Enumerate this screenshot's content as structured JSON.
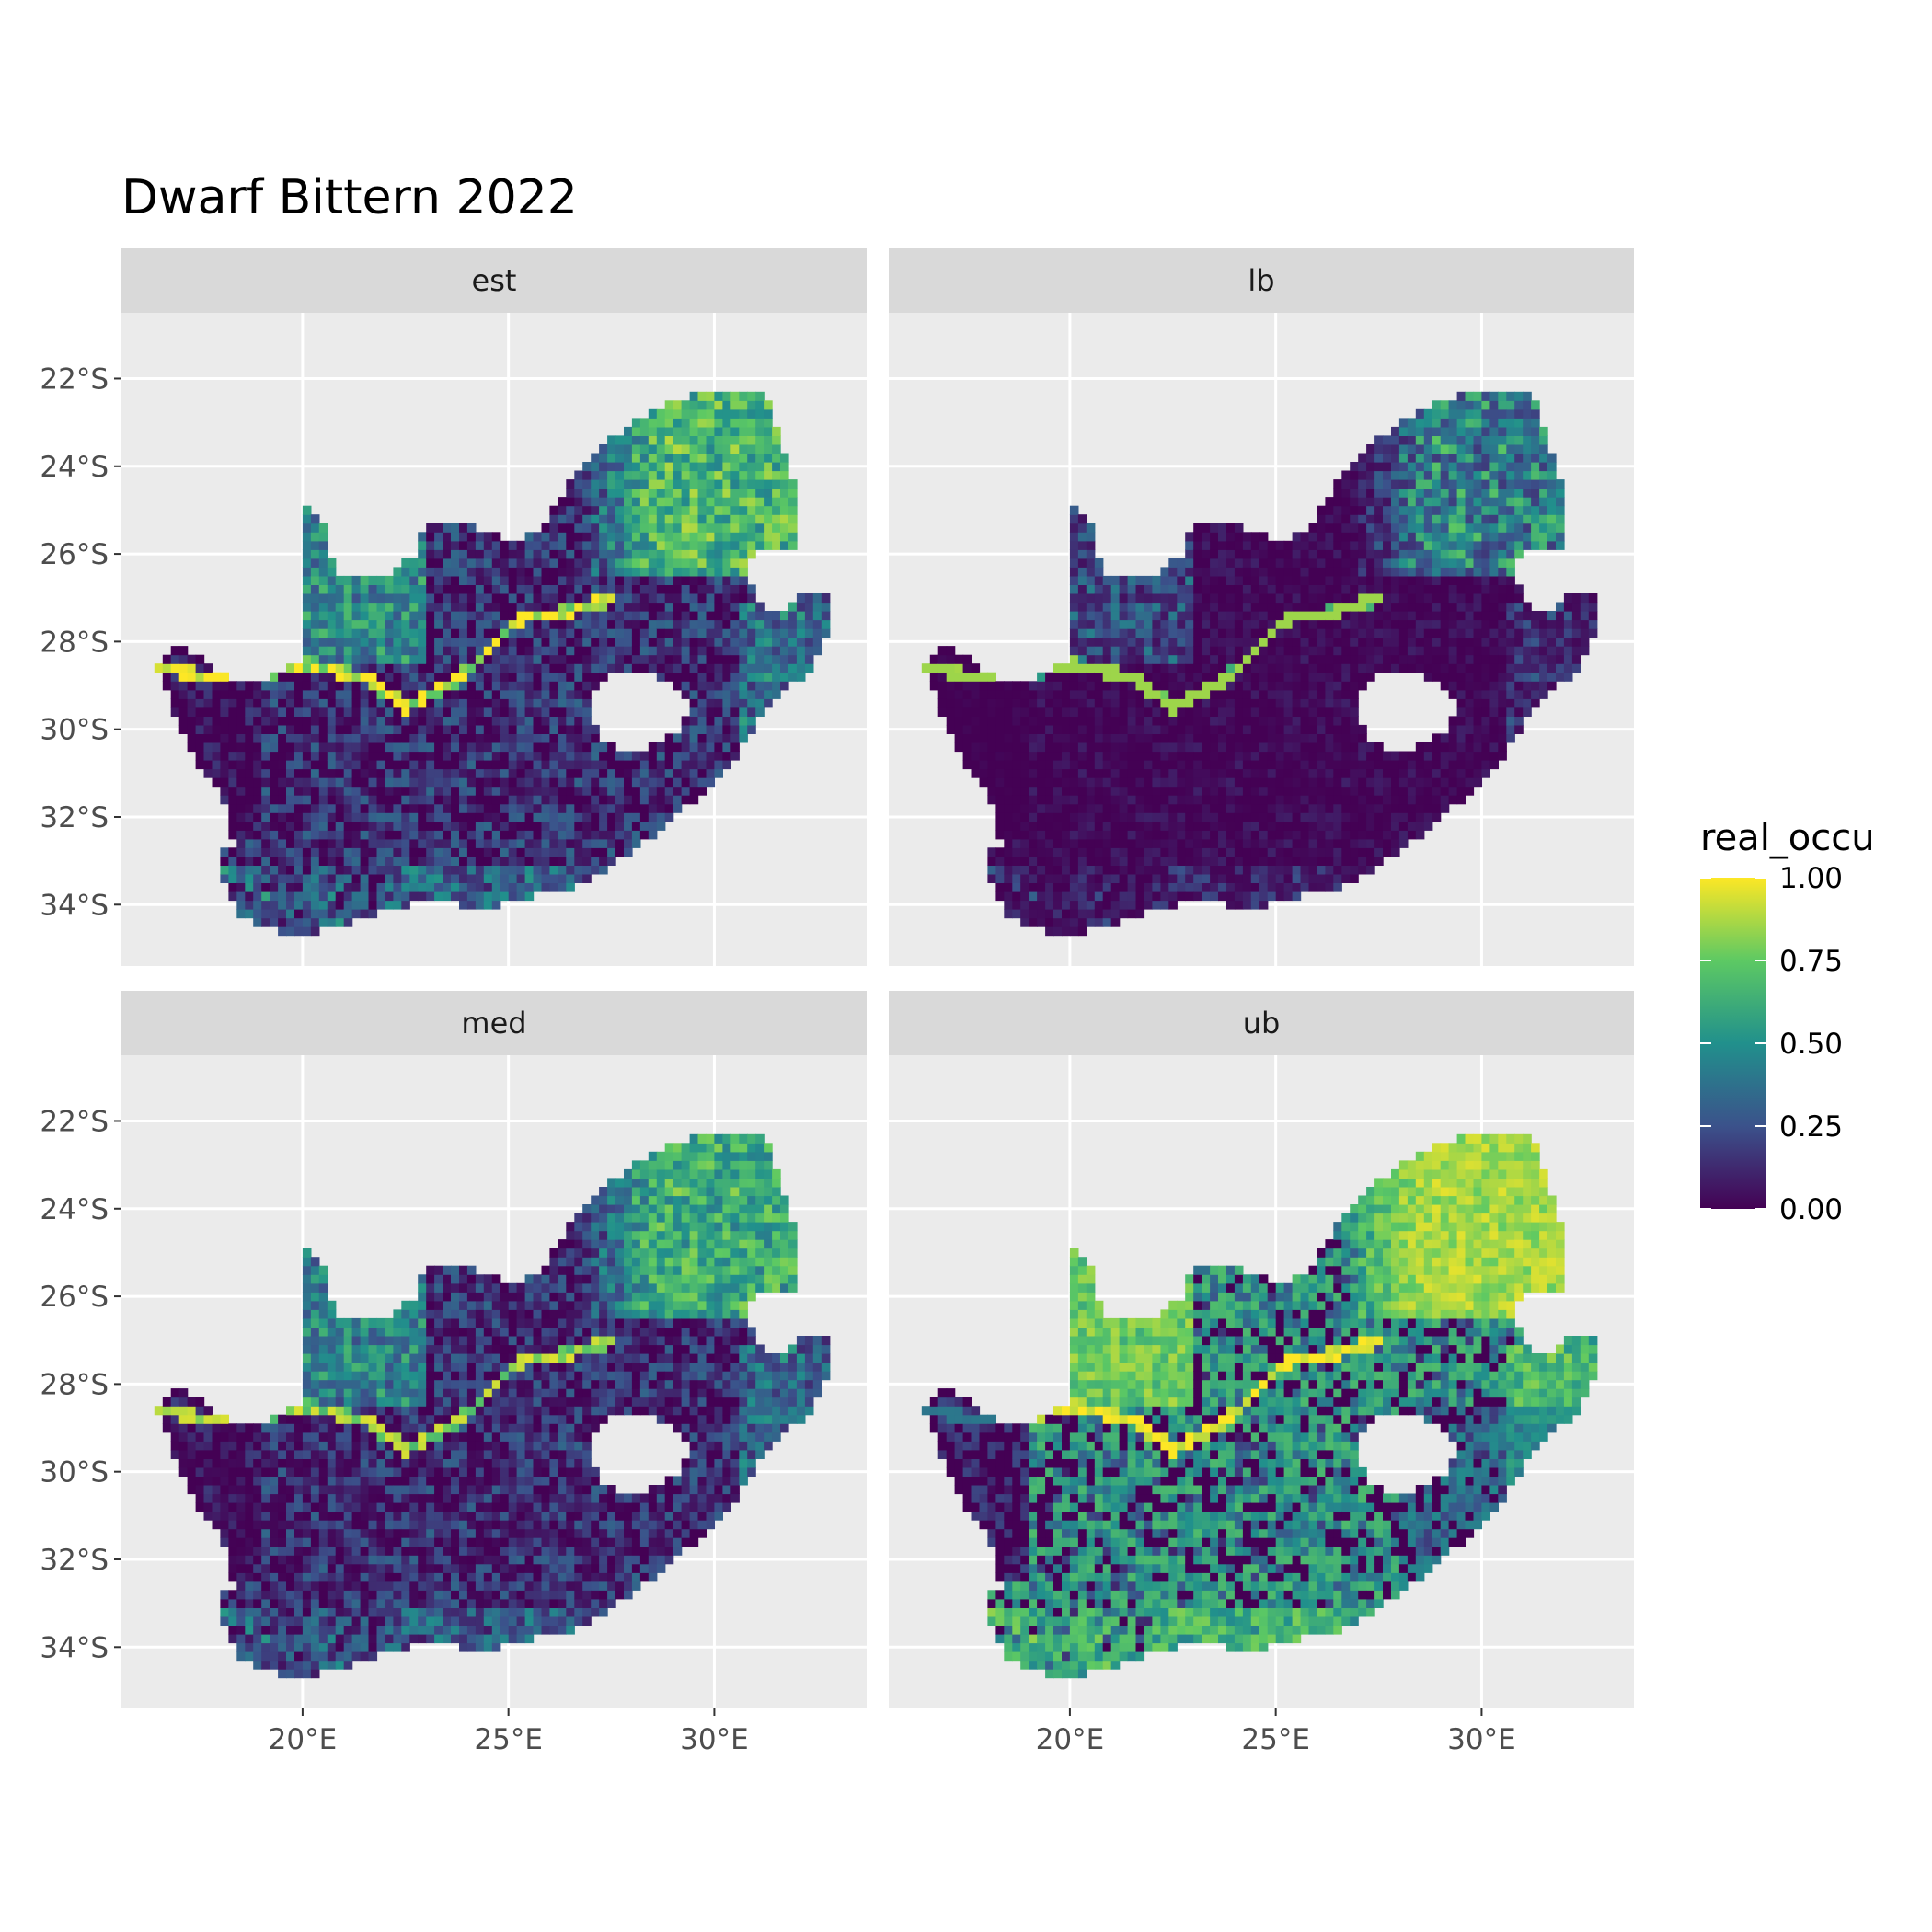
{
  "title": "Dwarf Bittern 2022",
  "panels": [
    {
      "label": "est",
      "key": "est"
    },
    {
      "label": "lb",
      "key": "lb"
    },
    {
      "label": "med",
      "key": "med"
    },
    {
      "label": "ub",
      "key": "ub"
    }
  ],
  "axes": {
    "x_ticks": [
      {
        "value": 20,
        "label": "20°E"
      },
      {
        "value": 25,
        "label": "25°E"
      },
      {
        "value": 30,
        "label": "30°E"
      }
    ],
    "y_ticks": [
      {
        "value": -22,
        "label": "22°S"
      },
      {
        "value": -24,
        "label": "24°S"
      },
      {
        "value": -26,
        "label": "26°S"
      },
      {
        "value": -28,
        "label": "28°S"
      },
      {
        "value": -30,
        "label": "30°S"
      },
      {
        "value": -32,
        "label": "32°S"
      },
      {
        "value": -34,
        "label": "34°S"
      }
    ],
    "xlim": [
      15.6,
      33.7
    ],
    "ylim": [
      -35.4,
      -20.5
    ]
  },
  "legend": {
    "title": "real_occu",
    "breaks": [
      {
        "value": 1.0,
        "label": "1.00"
      },
      {
        "value": 0.75,
        "label": "0.75"
      },
      {
        "value": 0.5,
        "label": "0.50"
      },
      {
        "value": 0.25,
        "label": "0.25"
      },
      {
        "value": 0.0,
        "label": "0.00"
      }
    ],
    "colormap": "viridis",
    "colors": [
      "#440154",
      "#3b528b",
      "#21908c",
      "#5dc963",
      "#fde725"
    ]
  },
  "colors": {
    "panel_background": "#ebebeb",
    "strip_background": "#d9d9d9",
    "grid": "#ffffff",
    "lesotho_hole": "#ffffff"
  },
  "map_data": {
    "type": "facet-raster-map",
    "region": "South Africa",
    "value_range": [
      0,
      1
    ],
    "mean_occupancy": {
      "est": 0.3,
      "lb": 0.12,
      "med": 0.28,
      "ub": 0.6
    }
  }
}
